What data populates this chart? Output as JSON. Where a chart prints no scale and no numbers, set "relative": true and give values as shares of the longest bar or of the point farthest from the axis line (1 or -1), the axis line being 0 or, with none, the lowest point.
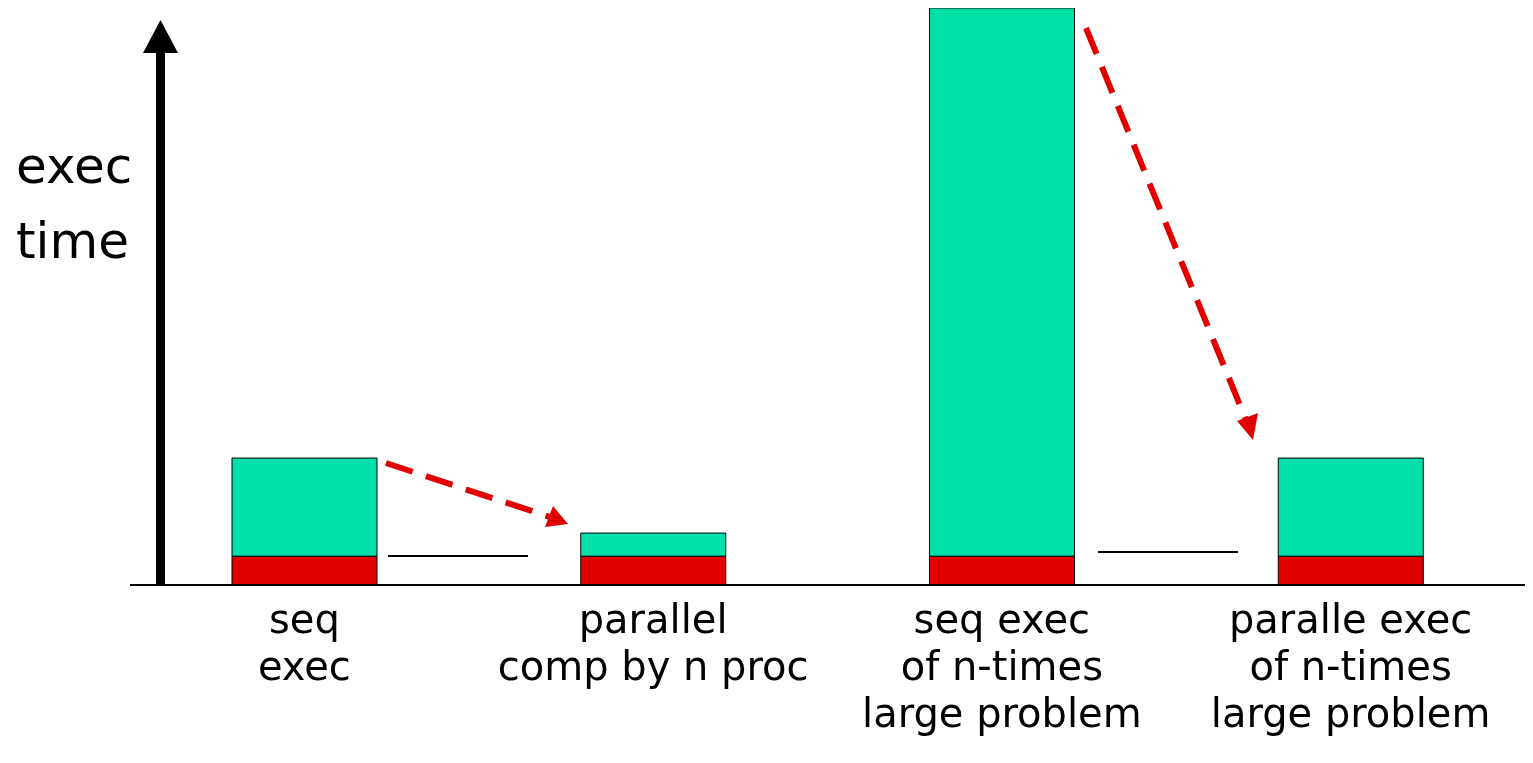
{
  "chart_data": {
    "type": "bar",
    "stacked": true,
    "relative": true,
    "ylabel": "exec\ntime",
    "categories": [
      "seq\nexec",
      "parallel\ncomp by n proc",
      "seq exec\nof n-times\nlarge problem",
      "paralle exec\nof n-times\nlarge problem"
    ],
    "series": [
      {
        "color": "#e00000",
        "values": [
          0.05,
          0.05,
          0.05,
          0.05
        ]
      },
      {
        "color": "#00e0a8",
        "values": [
          0.17,
          0.04,
          0.95,
          0.17
        ]
      }
    ]
  }
}
